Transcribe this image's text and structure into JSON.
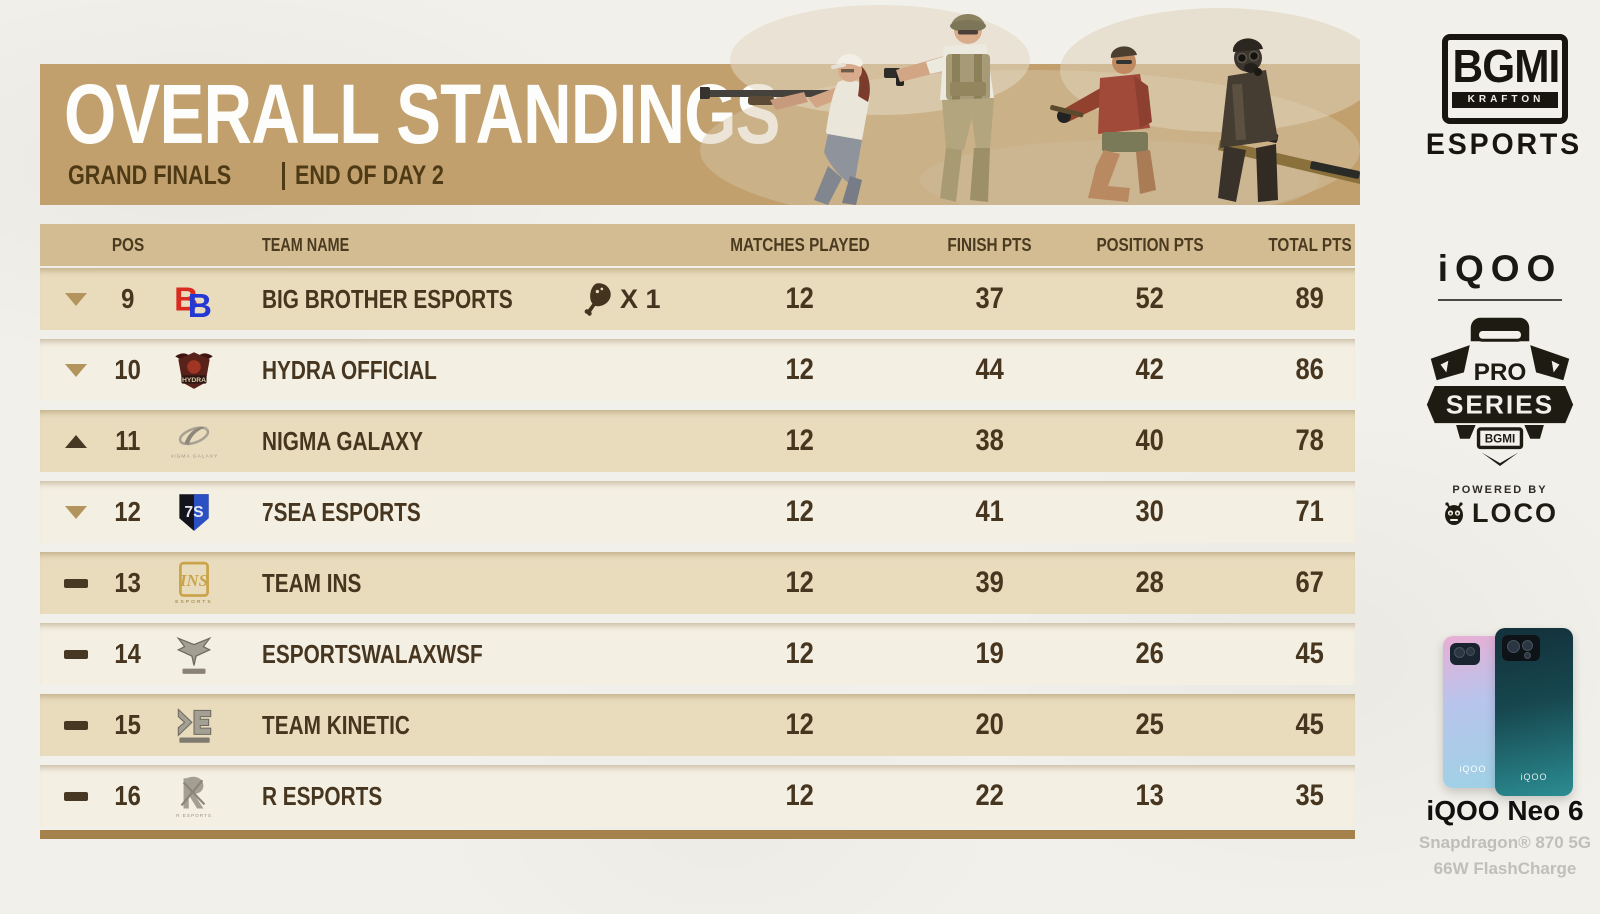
{
  "banner": {
    "title": "OVERALL STANDINGS",
    "stage": "GRAND FINALS",
    "day": "END OF DAY 2",
    "bg_color": "#c2a06e"
  },
  "table": {
    "headers": {
      "pos": "POS",
      "team": "TEAM NAME",
      "matches": "MATCHES PLAYED",
      "finish": "FINISH PTS",
      "position": "POSITION PTS",
      "total": "TOTAL PTS"
    },
    "rows": [
      {
        "pos": "9",
        "trend": "down",
        "team": "BIG BROTHER ESPORTS",
        "logo": "big-brother-esports",
        "wwcd_icon": "chicken-drumstick-icon",
        "wwcd_badge": "X 1",
        "matches": "12",
        "finish": "37",
        "position": "52",
        "total": "89"
      },
      {
        "pos": "10",
        "trend": "down",
        "team": "HYDRA OFFICIAL",
        "logo": "hydra-official",
        "wwcd_icon": "",
        "wwcd_badge": "",
        "matches": "12",
        "finish": "44",
        "position": "42",
        "total": "86"
      },
      {
        "pos": "11",
        "trend": "up",
        "team": "NIGMA GALAXY",
        "logo": "nigma-galaxy",
        "wwcd_icon": "",
        "wwcd_badge": "",
        "matches": "12",
        "finish": "38",
        "position": "40",
        "total": "78"
      },
      {
        "pos": "12",
        "trend": "down",
        "team": "7SEA ESPORTS",
        "logo": "7sea-esports",
        "wwcd_icon": "",
        "wwcd_badge": "",
        "matches": "12",
        "finish": "41",
        "position": "30",
        "total": "71"
      },
      {
        "pos": "13",
        "trend": "same",
        "team": "TEAM INS",
        "logo": "team-ins",
        "wwcd_icon": "",
        "wwcd_badge": "",
        "matches": "12",
        "finish": "39",
        "position": "28",
        "total": "67"
      },
      {
        "pos": "14",
        "trend": "same",
        "team": "ESPORTSWALAXWSF",
        "logo": "esportswala-wsf",
        "wwcd_icon": "",
        "wwcd_badge": "",
        "matches": "12",
        "finish": "19",
        "position": "26",
        "total": "45"
      },
      {
        "pos": "15",
        "trend": "same",
        "team": "TEAM KINETIC",
        "logo": "team-kinetic",
        "wwcd_icon": "",
        "wwcd_badge": "",
        "matches": "12",
        "finish": "20",
        "position": "25",
        "total": "45"
      },
      {
        "pos": "16",
        "trend": "same",
        "team": "R ESPORTS",
        "logo": "r-esports",
        "wwcd_icon": "",
        "wwcd_badge": "",
        "matches": "12",
        "finish": "22",
        "position": "13",
        "total": "35"
      }
    ]
  },
  "sidebar": {
    "bgmi_logo": {
      "line1": "BGMI",
      "line2": "KRAFTON",
      "line3": "ESPORTS"
    },
    "iqoo_wordmark": "iQOO",
    "pro_series": {
      "line1": "PRO",
      "line2": "SERIES",
      "line3": "BGMI"
    },
    "powered_by": "POWERED BY",
    "loco_label": "LOCO",
    "phone": {
      "name": "iQOO Neo 6",
      "spec1": "Snapdragon® 870 5G",
      "spec2": "66W FlashCharge"
    }
  },
  "colors": {
    "banner_tan": "#c2a06e",
    "table_header": "#d4bc92",
    "row_dark": "#e9dcbd",
    "row_light": "#f4efe3",
    "text_brown": "#4a3a20",
    "arrow_tan": "#b2945c",
    "footer_strip": "#a5814c",
    "page_bg": "#f2f0ea"
  }
}
